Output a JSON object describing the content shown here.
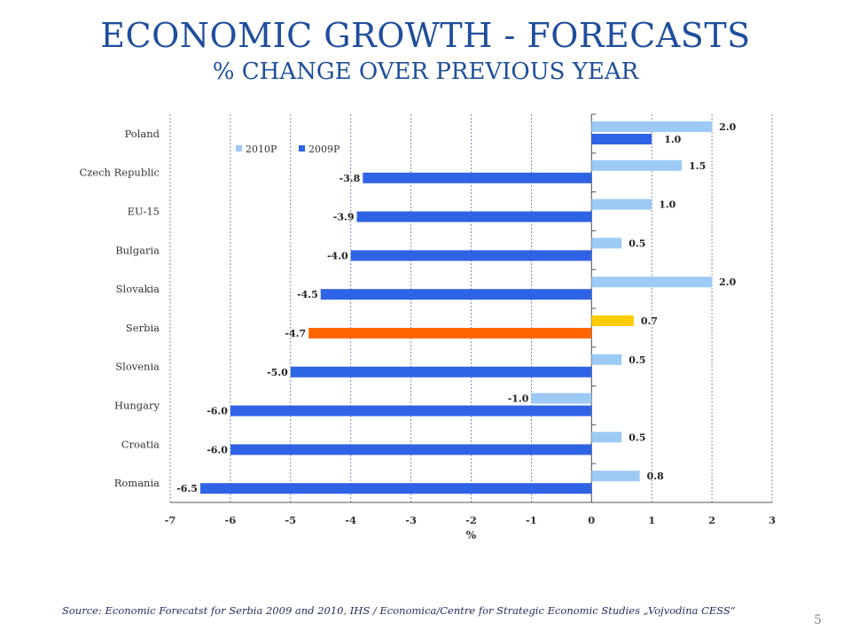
{
  "slide": {
    "title": "ECONOMIC GROWTH - FORECASTS",
    "subtitle": "% CHANGE OVER PREVIOUS YEAR",
    "source": "Source: Economic Forecatst for Serbia 2009  and 2010,  IHS / Economica/Centre for Strategic Economic Studies „Vojvodina CESS“",
    "page_number": "5"
  },
  "colors": {
    "series_2010": "#9ccaf5",
    "series_2009": "#2f63e6",
    "highlight_2010": "#ffcc00",
    "highlight_2009": "#ff6600",
    "gridline": "#6a6a9a"
  },
  "chart_data": {
    "type": "bar",
    "orientation": "horizontal",
    "categories": [
      "Poland",
      "Czech Republic",
      "EU-15",
      "Bulgaria",
      "Slovakia",
      "Serbia",
      "Slovenia",
      "Hungary",
      "Croatia",
      "Romania"
    ],
    "series": [
      {
        "name": "2010P",
        "values": [
          2.0,
          1.5,
          1.0,
          0.5,
          2.0,
          0.7,
          0.5,
          -1.0,
          0.5,
          0.8
        ]
      },
      {
        "name": "2009P",
        "values": [
          1.0,
          -3.8,
          -3.9,
          -4.0,
          -4.5,
          -4.7,
          -5.0,
          -6.0,
          -6.0,
          -6.5
        ]
      }
    ],
    "data_labels": {
      "2010P": [
        "2.0",
        "1.5",
        "1.0",
        "0.5",
        "2.0",
        "0.7",
        "0.5",
        "-1.0",
        "0.5",
        "0.8"
      ],
      "2009P": [
        "1.0",
        "-3.8",
        "-3.9",
        "-4.0",
        "-4.5",
        "-4.7",
        "-5.0",
        "-6.0",
        "-6.0",
        "-6.5"
      ]
    },
    "highlight_category": "Serbia",
    "xlabel": "%",
    "xlim": [
      -7,
      3
    ],
    "xticks": [
      -7,
      -6,
      -5,
      -4,
      -3,
      -2,
      -1,
      0,
      1,
      2,
      3
    ],
    "grid": "vertical dashed",
    "legend_position": "top-left",
    "legend": [
      "2010P",
      "2009P"
    ]
  }
}
